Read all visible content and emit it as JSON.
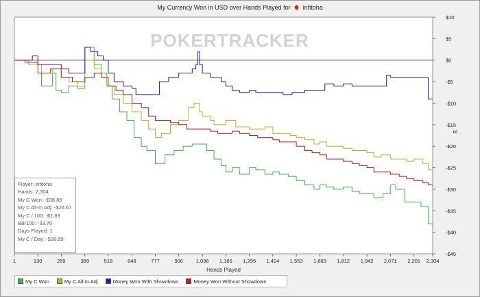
{
  "title": "My Currency Won in USD over Hands Played for",
  "player_name": "infitoha",
  "watermark": "POKERTRACKER",
  "stats": [
    "Player: infitoha",
    "Hands: 2,304",
    "My C Won: -$38.89",
    "My C All-In Adj: -$26.67",
    "My C / 100: -$1.69",
    "BB/100: -33.76",
    "Days Played: 1",
    "My C / Day: -$38.89"
  ],
  "legend": [
    {
      "label": "My C Won",
      "color": "#3cb93c"
    },
    {
      "label": "My C All-In Adj",
      "color": "#b7b52c"
    },
    {
      "label": "Money Won With Showdown",
      "color": "#1b1bbf"
    },
    {
      "label": "Money Won Without Showdown",
      "color": "#c21b1b"
    }
  ],
  "chart_data": {
    "type": "line",
    "title": "My Currency Won in USD over Hands Played for infitoha",
    "xlabel": "Hands Played",
    "ylabel": "$",
    "xlim": [
      1,
      2304
    ],
    "ylim": [
      -45,
      10
    ],
    "x_ticks": [
      1,
      130,
      259,
      389,
      518,
      648,
      777,
      906,
      1036,
      1165,
      1295,
      1424,
      1553,
      1683,
      1812,
      1942,
      2071,
      2201,
      2304
    ],
    "x_tick_labels": [
      "1",
      "130",
      "259",
      "389",
      "518",
      "648",
      "777",
      "906",
      "1,036",
      "1,165",
      "1,295",
      "1,424",
      "1,553",
      "1,683",
      "1,812",
      "1,942",
      "2,071",
      "2,201",
      "2,304"
    ],
    "y_ticks": [
      10,
      5,
      0,
      -5,
      -10,
      -15,
      -20,
      -25,
      -30,
      -35,
      -40,
      -45
    ],
    "y_tick_labels": [
      "$10",
      "$5",
      "$0",
      "-$5",
      "-$10",
      "-$15",
      "-$20",
      "-$25",
      "-$30",
      "-$35",
      "-$40",
      "-$45"
    ],
    "zero_line": 0,
    "legend_position": "bottom",
    "series": [
      {
        "name": "My C Won",
        "color": "#3cb93c",
        "points": [
          [
            1,
            0
          ],
          [
            80,
            -1
          ],
          [
            150,
            -6
          ],
          [
            210,
            -3
          ],
          [
            230,
            -7
          ],
          [
            259,
            -7.5
          ],
          [
            300,
            -6
          ],
          [
            350,
            -6.5
          ],
          [
            389,
            3
          ],
          [
            440,
            -1
          ],
          [
            480,
            -3
          ],
          [
            510,
            -6
          ],
          [
            540,
            -9
          ],
          [
            580,
            -12
          ],
          [
            620,
            -14
          ],
          [
            660,
            -18
          ],
          [
            700,
            -20
          ],
          [
            730,
            -21
          ],
          [
            777,
            -24
          ],
          [
            830,
            -22
          ],
          [
            880,
            -21
          ],
          [
            930,
            -20
          ],
          [
            980,
            -19.5
          ],
          [
            1036,
            -19.5
          ],
          [
            1060,
            -21
          ],
          [
            1100,
            -23
          ],
          [
            1140,
            -24.5
          ],
          [
            1165,
            -26
          ],
          [
            1200,
            -25
          ],
          [
            1240,
            -26.5
          ],
          [
            1295,
            -25
          ],
          [
            1330,
            -25.5
          ],
          [
            1380,
            -26.5
          ],
          [
            1424,
            -26
          ],
          [
            1460,
            -26.5
          ],
          [
            1510,
            -27
          ],
          [
            1553,
            -28
          ],
          [
            1600,
            -29
          ],
          [
            1650,
            -30
          ],
          [
            1683,
            -29
          ],
          [
            1720,
            -29.5
          ],
          [
            1760,
            -30
          ],
          [
            1812,
            -29.5
          ],
          [
            1860,
            -30.5
          ],
          [
            1900,
            -31
          ],
          [
            1942,
            -31
          ],
          [
            1980,
            -32
          ],
          [
            2030,
            -31
          ],
          [
            2071,
            -29
          ],
          [
            2100,
            -30
          ],
          [
            2150,
            -33
          ],
          [
            2201,
            -33
          ],
          [
            2240,
            -34
          ],
          [
            2280,
            -38
          ],
          [
            2304,
            -39
          ]
        ]
      },
      {
        "name": "My C All-In Adj",
        "color": "#b7b52c",
        "points": [
          [
            1,
            0
          ],
          [
            80,
            -1
          ],
          [
            150,
            -3
          ],
          [
            210,
            -2
          ],
          [
            259,
            -4
          ],
          [
            300,
            -5
          ],
          [
            350,
            -6
          ],
          [
            389,
            0
          ],
          [
            440,
            -2
          ],
          [
            480,
            -4
          ],
          [
            510,
            -6
          ],
          [
            550,
            -8
          ],
          [
            600,
            -10
          ],
          [
            648,
            -12
          ],
          [
            700,
            -14
          ],
          [
            740,
            -16
          ],
          [
            777,
            -18
          ],
          [
            810,
            -17
          ],
          [
            860,
            -15
          ],
          [
            906,
            -14
          ],
          [
            960,
            -11
          ],
          [
            990,
            -10
          ],
          [
            1020,
            -12
          ],
          [
            1036,
            -13
          ],
          [
            1080,
            -14
          ],
          [
            1100,
            -15
          ],
          [
            1140,
            -15
          ],
          [
            1165,
            -14
          ],
          [
            1220,
            -15.5
          ],
          [
            1295,
            -16
          ],
          [
            1340,
            -16
          ],
          [
            1380,
            -15.5
          ],
          [
            1424,
            -17
          ],
          [
            1470,
            -17
          ],
          [
            1520,
            -17.5
          ],
          [
            1553,
            -18
          ],
          [
            1600,
            -18.5
          ],
          [
            1650,
            -19.5
          ],
          [
            1683,
            -19
          ],
          [
            1720,
            -20
          ],
          [
            1780,
            -20
          ],
          [
            1812,
            -20.5
          ],
          [
            1860,
            -21
          ],
          [
            1900,
            -21
          ],
          [
            1942,
            -21.5
          ],
          [
            1980,
            -22.5
          ],
          [
            2020,
            -22
          ],
          [
            2071,
            -23
          ],
          [
            2120,
            -23
          ],
          [
            2160,
            -23.5
          ],
          [
            2201,
            -23
          ],
          [
            2250,
            -24
          ],
          [
            2280,
            -25.5
          ],
          [
            2304,
            -26.5
          ]
        ]
      },
      {
        "name": "Money Won With Showdown",
        "color": "#1b1bbf",
        "points": [
          [
            1,
            0
          ],
          [
            100,
            1
          ],
          [
            130,
            -1
          ],
          [
            200,
            -1
          ],
          [
            259,
            -2
          ],
          [
            300,
            -3
          ],
          [
            370,
            -3
          ],
          [
            389,
            3
          ],
          [
            420,
            2
          ],
          [
            460,
            1
          ],
          [
            490,
            0
          ],
          [
            518,
            -3
          ],
          [
            550,
            -5
          ],
          [
            600,
            -6
          ],
          [
            648,
            -6.5
          ],
          [
            670,
            -8
          ],
          [
            720,
            -8
          ],
          [
            777,
            -8
          ],
          [
            800,
            -5
          ],
          [
            850,
            -4
          ],
          [
            906,
            -3
          ],
          [
            940,
            -3
          ],
          [
            980,
            -2
          ],
          [
            1000,
            -1
          ],
          [
            1010,
            2
          ],
          [
            1020,
            -1
          ],
          [
            1036,
            -3
          ],
          [
            1080,
            -4
          ],
          [
            1140,
            -5
          ],
          [
            1165,
            -6
          ],
          [
            1200,
            -7
          ],
          [
            1240,
            -7.5
          ],
          [
            1295,
            -7
          ],
          [
            1330,
            -7.5
          ],
          [
            1380,
            -7.5
          ],
          [
            1424,
            -7.5
          ],
          [
            1480,
            -8
          ],
          [
            1530,
            -7.5
          ],
          [
            1553,
            -7.5
          ],
          [
            1600,
            -7
          ],
          [
            1640,
            -7
          ],
          [
            1683,
            -7
          ],
          [
            1710,
            -5.5
          ],
          [
            1760,
            -6
          ],
          [
            1812,
            -5.5
          ],
          [
            1860,
            -6
          ],
          [
            1900,
            -6
          ],
          [
            1942,
            -6
          ],
          [
            1990,
            -6
          ],
          [
            2030,
            -6
          ],
          [
            2050,
            -3.5
          ],
          [
            2071,
            -4
          ],
          [
            2120,
            -4
          ],
          [
            2180,
            -4
          ],
          [
            2201,
            -4
          ],
          [
            2240,
            -4
          ],
          [
            2280,
            -9
          ],
          [
            2304,
            -9
          ]
        ]
      },
      {
        "name": "Money Won Without Showdown",
        "color": "#c21b1b",
        "points": [
          [
            1,
            0
          ],
          [
            60,
            -0.5
          ],
          [
            130,
            -3
          ],
          [
            200,
            -2
          ],
          [
            259,
            -4
          ],
          [
            320,
            -5
          ],
          [
            389,
            -4
          ],
          [
            440,
            -3
          ],
          [
            480,
            -4
          ],
          [
            518,
            -6
          ],
          [
            560,
            -7
          ],
          [
            600,
            -8
          ],
          [
            648,
            -10
          ],
          [
            700,
            -11
          ],
          [
            740,
            -13
          ],
          [
            777,
            -14
          ],
          [
            820,
            -14
          ],
          [
            860,
            -14.5
          ],
          [
            906,
            -15
          ],
          [
            950,
            -16
          ],
          [
            1000,
            -16
          ],
          [
            1036,
            -16
          ],
          [
            1080,
            -16.5
          ],
          [
            1120,
            -17
          ],
          [
            1165,
            -17
          ],
          [
            1200,
            -16.5
          ],
          [
            1240,
            -17
          ],
          [
            1295,
            -17.5
          ],
          [
            1340,
            -18
          ],
          [
            1380,
            -18
          ],
          [
            1424,
            -18.5
          ],
          [
            1460,
            -19
          ],
          [
            1510,
            -19
          ],
          [
            1553,
            -20
          ],
          [
            1600,
            -21
          ],
          [
            1640,
            -21.5
          ],
          [
            1683,
            -22
          ],
          [
            1720,
            -23
          ],
          [
            1760,
            -23
          ],
          [
            1812,
            -23.5
          ],
          [
            1860,
            -24
          ],
          [
            1900,
            -24.5
          ],
          [
            1942,
            -25
          ],
          [
            1980,
            -26
          ],
          [
            2030,
            -26
          ],
          [
            2071,
            -26.5
          ],
          [
            2120,
            -27
          ],
          [
            2160,
            -27.5
          ],
          [
            2201,
            -28
          ],
          [
            2250,
            -28.5
          ],
          [
            2280,
            -29
          ],
          [
            2304,
            -29.5
          ]
        ]
      }
    ]
  }
}
